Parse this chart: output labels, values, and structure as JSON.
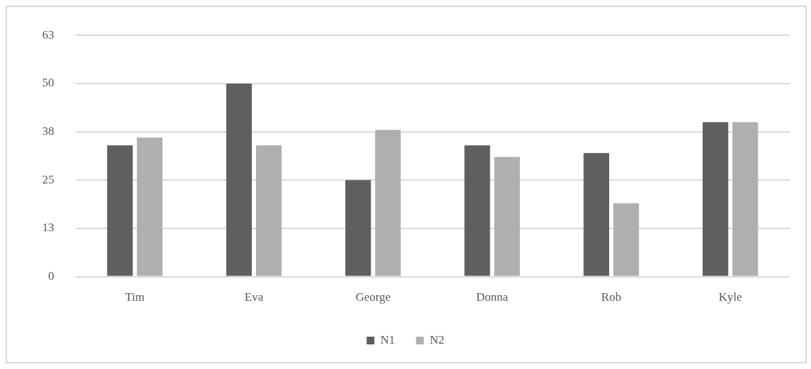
{
  "chart_data": {
    "type": "bar",
    "categories": [
      "Tim",
      "Eva",
      "George",
      "Donna",
      "Rob",
      "Kyle"
    ],
    "series": [
      {
        "name": "N1",
        "color": "#5f5f5f",
        "values": [
          34,
          50,
          25,
          34,
          32,
          40
        ]
      },
      {
        "name": "N2",
        "color": "#afafaf",
        "values": [
          36,
          34,
          38,
          31,
          19,
          40
        ]
      }
    ],
    "ylim": [
      0,
      62.5
    ],
    "yticks": [
      {
        "value": 0,
        "label": "0"
      },
      {
        "value": 12.5,
        "label": "13"
      },
      {
        "value": 25,
        "label": "25"
      },
      {
        "value": 37.5,
        "label": "38"
      },
      {
        "value": 50,
        "label": "50"
      },
      {
        "value": 62.5,
        "label": "63"
      }
    ],
    "grid": "y",
    "legend": "bottom"
  }
}
